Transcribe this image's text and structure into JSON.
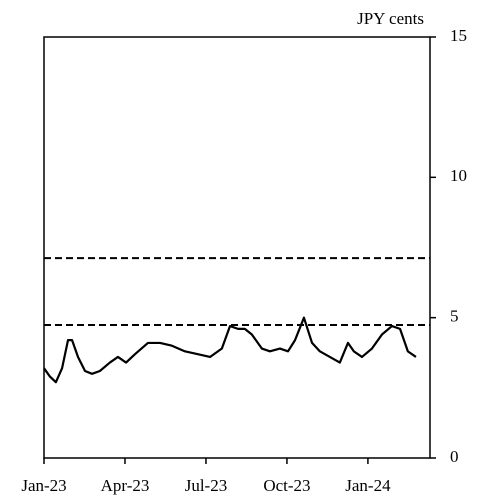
{
  "chart_data": {
    "type": "line",
    "y_unit_label": "JPY cents",
    "x": [
      0,
      0.22,
      0.44,
      0.67,
      0.89,
      1.04,
      1.26,
      1.52,
      1.78,
      2.07,
      2.44,
      2.74,
      3.04,
      3.37,
      3.85,
      4.3,
      4.74,
      5.22,
      5.7,
      6.15,
      6.59,
      6.89,
      7.19,
      7.44,
      7.7,
      8.07,
      8.37,
      8.74,
      9.04,
      9.3,
      9.63,
      9.93,
      10.22,
      10.59,
      10.96,
      11.26,
      11.48,
      11.78,
      12.15,
      12.52,
      12.89,
      13.19,
      13.48,
      13.78
    ],
    "series": [
      {
        "color": "#000000",
        "values": [
          3.2,
          2.9,
          2.7,
          3.2,
          4.2,
          4.2,
          3.6,
          3.1,
          3.0,
          3.1,
          3.4,
          3.6,
          3.4,
          3.7,
          4.1,
          4.1,
          4.0,
          3.8,
          3.7,
          3.6,
          3.9,
          4.7,
          4.6,
          4.6,
          4.4,
          3.9,
          3.8,
          3.9,
          3.8,
          4.2,
          5.0,
          4.1,
          3.8,
          3.6,
          3.4,
          4.1,
          3.8,
          3.6,
          3.9,
          4.4,
          4.7,
          4.6,
          3.8,
          3.6
        ]
      }
    ],
    "reference_lines": [
      4.74,
      7.12
    ],
    "xlim": [
      0,
      14.3
    ],
    "xticks": [
      {
        "value": 0,
        "label": "Jan-23"
      },
      {
        "value": 3,
        "label": "Apr-23"
      },
      {
        "value": 6,
        "label": "Jul-23"
      },
      {
        "value": 9,
        "label": "Oct-23"
      },
      {
        "value": 12,
        "label": "Jan-24"
      }
    ],
    "ylim": [
      0,
      15
    ],
    "yticks": [
      0,
      5,
      10,
      15
    ],
    "y_axis_side": "right"
  }
}
